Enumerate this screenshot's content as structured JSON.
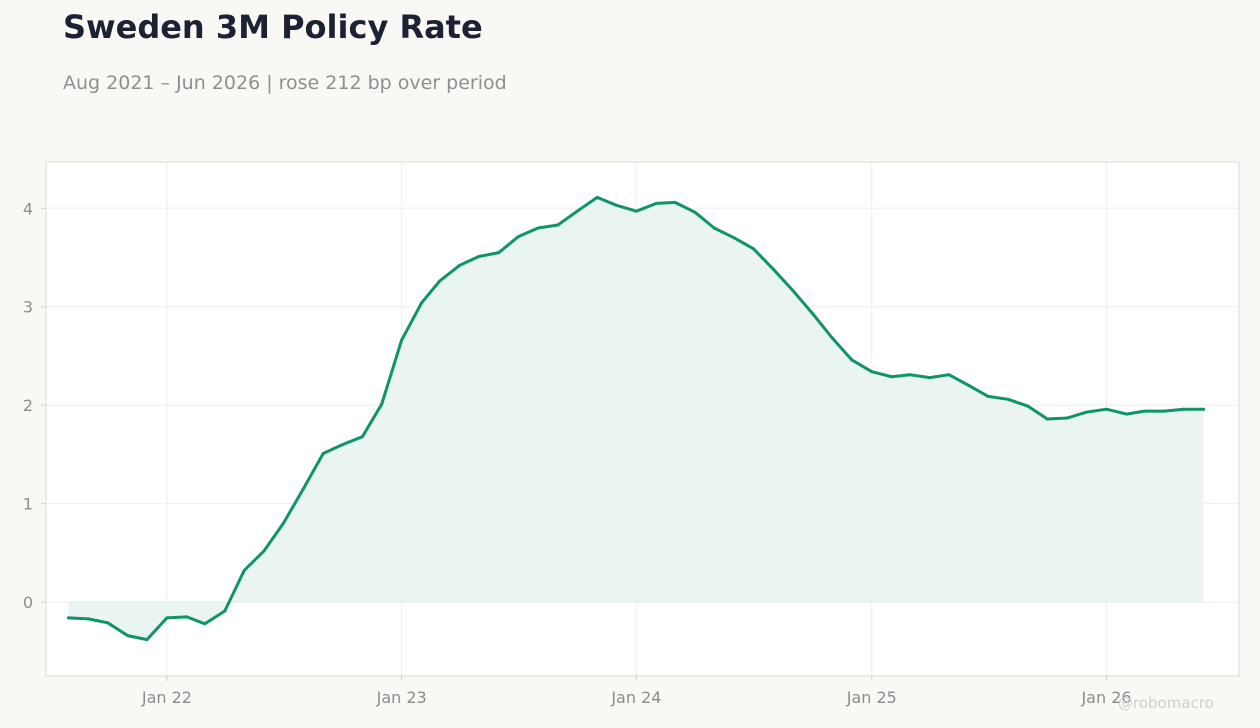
{
  "header": {
    "title": "Sweden 3M Policy Rate",
    "subtitle": "Aug 2021 – Jun 2026 | rose 212 bp over period"
  },
  "watermark": "@robomacro",
  "colors": {
    "line": "#0f9468",
    "fill": "#e9f4f0",
    "background": "#f9f8f5",
    "plot_background": "#ffffff",
    "grid": "#eeeeee",
    "title": "#1c2233",
    "muted": "#8c8c8c"
  },
  "chart_data": {
    "type": "area",
    "title": "Sweden 3M Policy Rate",
    "xlabel": "",
    "ylabel": "",
    "x_ticks": [
      "Jan 22",
      "Jan 23",
      "Jan 24",
      "Jan 25",
      "Jan 26"
    ],
    "y_ticks": [
      0,
      1,
      2,
      3,
      4
    ],
    "xlim": [
      "2021-06-27",
      "2026-07-26"
    ],
    "ylim": [
      -0.75,
      4.47
    ],
    "grid": true,
    "legend": "none",
    "x": [
      "2021-08",
      "2021-09",
      "2021-10",
      "2021-11",
      "2021-12",
      "2022-01",
      "2022-02",
      "2022-03",
      "2022-04",
      "2022-05",
      "2022-06",
      "2022-07",
      "2022-08",
      "2022-09",
      "2022-10",
      "2022-11",
      "2022-12",
      "2023-01",
      "2023-02",
      "2023-03",
      "2023-04",
      "2023-05",
      "2023-06",
      "2023-07",
      "2023-08",
      "2023-09",
      "2023-10",
      "2023-11",
      "2023-12",
      "2024-01",
      "2024-02",
      "2024-03",
      "2024-04",
      "2024-05",
      "2024-06",
      "2024-07",
      "2024-08",
      "2024-09",
      "2024-10",
      "2024-11",
      "2024-12",
      "2025-01",
      "2025-02",
      "2025-03",
      "2025-04",
      "2025-05",
      "2025-06",
      "2025-07",
      "2025-08",
      "2025-09",
      "2025-10",
      "2025-11",
      "2025-12",
      "2026-01",
      "2026-02",
      "2026-03",
      "2026-04",
      "2026-05",
      "2026-06"
    ],
    "series": [
      {
        "values": [
          -0.16,
          -0.17,
          -0.21,
          -0.34,
          -0.38,
          -0.16,
          -0.15,
          -0.22,
          -0.09,
          0.32,
          0.52,
          0.8,
          1.15,
          1.51,
          1.6,
          1.68,
          2.01,
          2.66,
          3.04,
          3.26,
          3.42,
          3.51,
          3.55,
          3.71,
          3.8,
          3.83,
          3.97,
          4.11,
          4.03,
          3.97,
          4.05,
          4.06,
          3.96,
          3.8,
          3.7,
          3.59,
          3.38,
          3.16,
          2.93,
          2.68,
          2.46,
          2.34,
          2.29,
          2.31,
          2.28,
          2.31,
          2.2,
          2.09,
          2.06,
          1.99,
          1.86,
          1.87,
          1.93,
          1.96,
          1.91,
          1.94,
          1.94,
          1.96,
          1.96
        ]
      }
    ]
  }
}
